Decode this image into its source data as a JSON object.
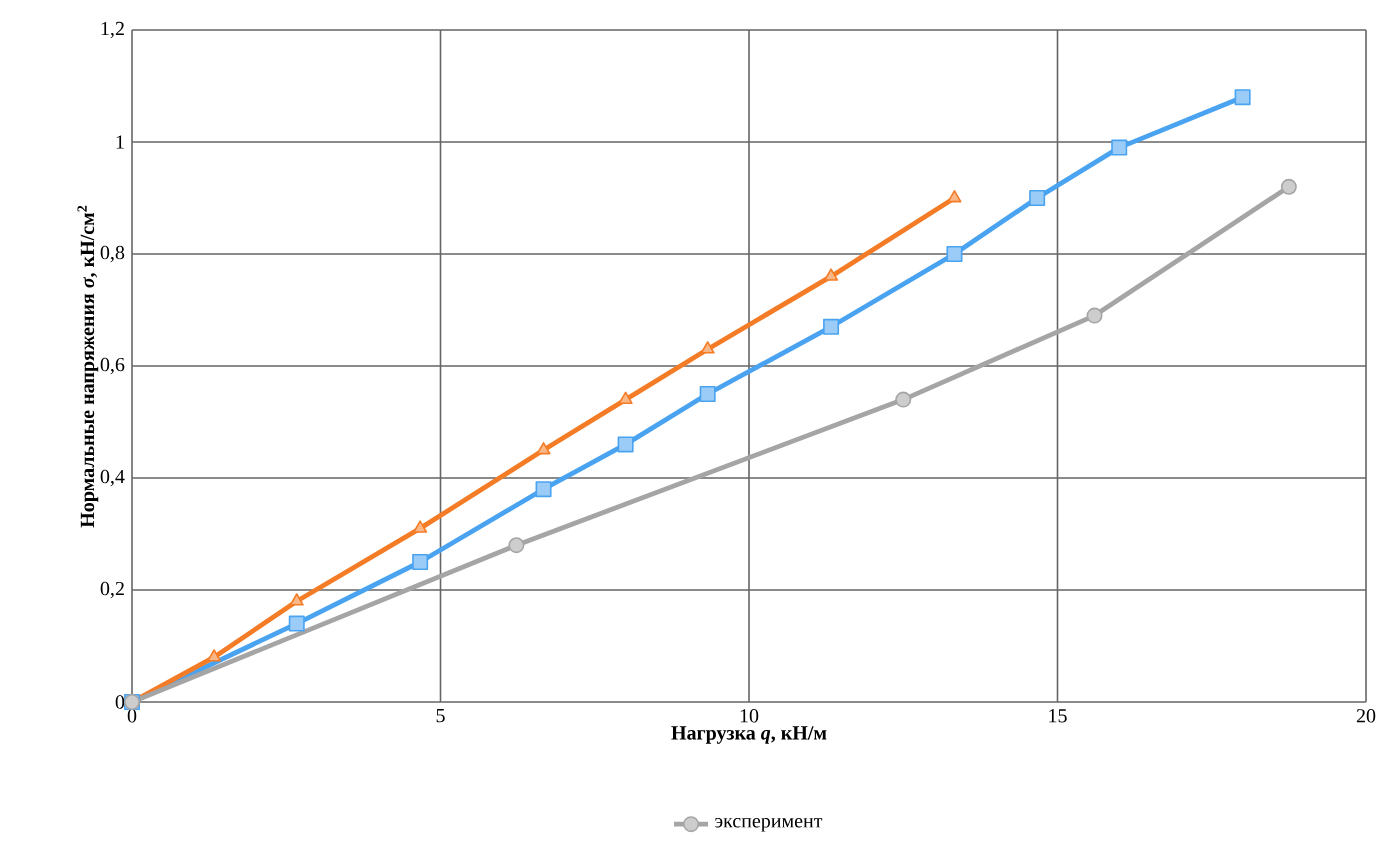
{
  "chart_data": {
    "type": "line",
    "xlabel": "Нагрузка *q*, кН/м",
    "ylabel": "Нормальные напряжения *σ*, кН/см$^{2}$",
    "xlim": [
      0,
      20
    ],
    "xticks": [
      0,
      5,
      10,
      15,
      20
    ],
    "ylim": [
      0,
      1.2
    ],
    "yticks": [
      {
        "value": 0,
        "label": "0"
      },
      {
        "value": 0.2,
        "label": "0,2"
      },
      {
        "value": 0.4,
        "label": "0,4"
      },
      {
        "value": 0.6,
        "label": "0,6"
      },
      {
        "value": 0.8,
        "label": "0,8"
      },
      {
        "value": 1,
        "label": "1"
      },
      {
        "value": 1.2,
        "label": "1,2"
      }
    ],
    "grid": true,
    "legend": "bottom",
    "series": [
      {
        "color": "#4aa3f0",
        "marker": "square",
        "x": [
          0,
          2.67,
          4.67,
          6.67,
          8,
          9.33,
          11.33,
          13.33,
          14.67,
          16,
          18
        ],
        "values": [
          0,
          0.14,
          0.25,
          0.38,
          0.46,
          0.55,
          0.67,
          0.8,
          0.9,
          0.99,
          1.08
        ]
      },
      {
        "color": "#f57c26",
        "marker": "triangle",
        "x": [
          0,
          1.33,
          2.67,
          4.67,
          6.67,
          8,
          9.33,
          11.33,
          13.33
        ],
        "values": [
          0,
          0.08,
          0.18,
          0.31,
          0.45,
          0.54,
          0.63,
          0.76,
          0.9
        ]
      },
      {
        "name": "эксперимент",
        "color": "#a5a5a5",
        "marker": "circle",
        "x": [
          0,
          6.23,
          12.5,
          15.6,
          18.75
        ],
        "values": [
          0,
          0.28,
          0.54,
          0.69,
          0.92
        ]
      }
    ]
  }
}
